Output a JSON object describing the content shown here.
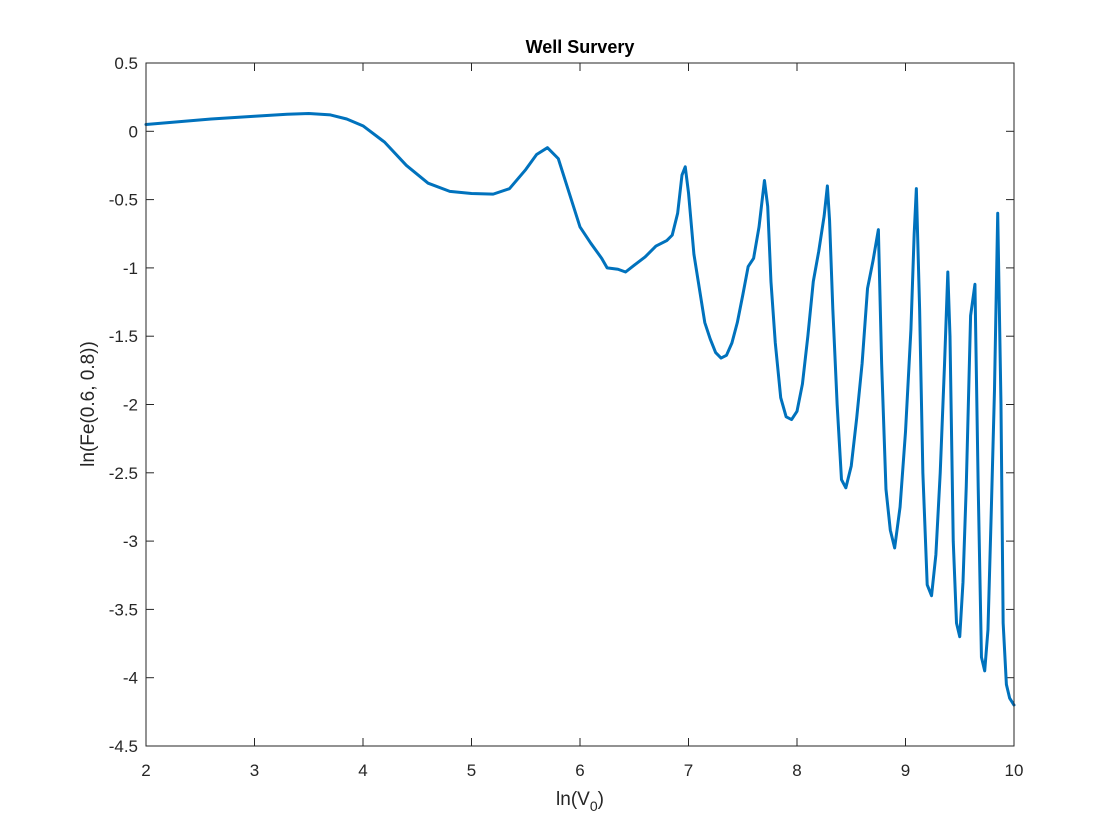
{
  "chart_data": {
    "type": "line",
    "title": "Well Survery",
    "xlabel_main": "ln(V",
    "xlabel_sub": "0",
    "xlabel_close": ")",
    "ylabel": "ln(Fe(0.6, 0.8))",
    "xlim": [
      2,
      10
    ],
    "ylim": [
      -4.5,
      0.5
    ],
    "xticks": [
      2,
      3,
      4,
      5,
      6,
      7,
      8,
      9,
      10
    ],
    "yticks": [
      0.5,
      0,
      -0.5,
      -1,
      -1.5,
      -2,
      -2.5,
      -3,
      -3.5,
      -4,
      -4.5
    ],
    "xtick_labels": [
      "2",
      "3",
      "4",
      "5",
      "6",
      "7",
      "8",
      "9",
      "10"
    ],
    "ytick_labels": [
      "0.5",
      "0",
      "-0.5",
      "-1",
      "-1.5",
      "-2",
      "-2.5",
      "-3",
      "-3.5",
      "-4",
      "-4.5"
    ],
    "grid": false,
    "line_color": "#0072BD",
    "series": [
      {
        "x": [
          2.0,
          2.3,
          2.6,
          3.0,
          3.3,
          3.5,
          3.7,
          3.85,
          4.0,
          4.2,
          4.4,
          4.6,
          4.8,
          5.0,
          5.2,
          5.35,
          5.5,
          5.6,
          5.7,
          5.8,
          5.9,
          6.0,
          6.1,
          6.2,
          6.25,
          6.35,
          6.42,
          6.5,
          6.6,
          6.7,
          6.8,
          6.85,
          6.9,
          6.94,
          6.97,
          7.0,
          7.05,
          7.1,
          7.15,
          7.2,
          7.25,
          7.3,
          7.35,
          7.4,
          7.45,
          7.5,
          7.55,
          7.6,
          7.65,
          7.7,
          7.73,
          7.76,
          7.8,
          7.85,
          7.9,
          7.95,
          8.0,
          8.05,
          8.1,
          8.15,
          8.2,
          8.25,
          8.28,
          8.3,
          8.33,
          8.37,
          8.41,
          8.45,
          8.5,
          8.55,
          8.6,
          8.65,
          8.7,
          8.75,
          8.78,
          8.82,
          8.86,
          8.9,
          8.95,
          9.0,
          9.05,
          9.08,
          9.1,
          9.13,
          9.16,
          9.2,
          9.24,
          9.28,
          9.32,
          9.36,
          9.39,
          9.41,
          9.44,
          9.47,
          9.5,
          9.53,
          9.56,
          9.6,
          9.64,
          9.67,
          9.7,
          9.73,
          9.76,
          9.79,
          9.82,
          9.85,
          9.88,
          9.9,
          9.93,
          9.96,
          10.0
        ],
        "y": [
          0.05,
          0.07,
          0.09,
          0.11,
          0.125,
          0.13,
          0.12,
          0.09,
          0.04,
          -0.08,
          -0.25,
          -0.38,
          -0.44,
          -0.455,
          -0.46,
          -0.42,
          -0.28,
          -0.17,
          -0.12,
          -0.2,
          -0.45,
          -0.7,
          -0.82,
          -0.93,
          -1.0,
          -1.01,
          -1.03,
          -0.98,
          -0.92,
          -0.84,
          -0.8,
          -0.76,
          -0.6,
          -0.32,
          -0.26,
          -0.45,
          -0.9,
          -1.15,
          -1.4,
          -1.52,
          -1.62,
          -1.66,
          -1.64,
          -1.55,
          -1.4,
          -1.2,
          -0.99,
          -0.93,
          -0.7,
          -0.36,
          -0.55,
          -1.1,
          -1.55,
          -1.95,
          -2.09,
          -2.11,
          -2.05,
          -1.85,
          -1.5,
          -1.1,
          -0.88,
          -0.62,
          -0.4,
          -0.65,
          -1.3,
          -2.0,
          -2.55,
          -2.61,
          -2.45,
          -2.1,
          -1.7,
          -1.15,
          -0.95,
          -0.72,
          -1.7,
          -2.62,
          -2.92,
          -3.05,
          -2.75,
          -2.2,
          -1.45,
          -0.75,
          -0.42,
          -1.3,
          -2.5,
          -3.32,
          -3.4,
          -3.1,
          -2.5,
          -1.7,
          -1.03,
          -1.5,
          -3.0,
          -3.6,
          -3.7,
          -3.3,
          -2.6,
          -1.35,
          -1.12,
          -2.6,
          -3.85,
          -3.95,
          -3.65,
          -2.8,
          -1.9,
          -0.6,
          -2.0,
          -3.6,
          -4.05,
          -4.15,
          -4.2
        ]
      }
    ]
  }
}
